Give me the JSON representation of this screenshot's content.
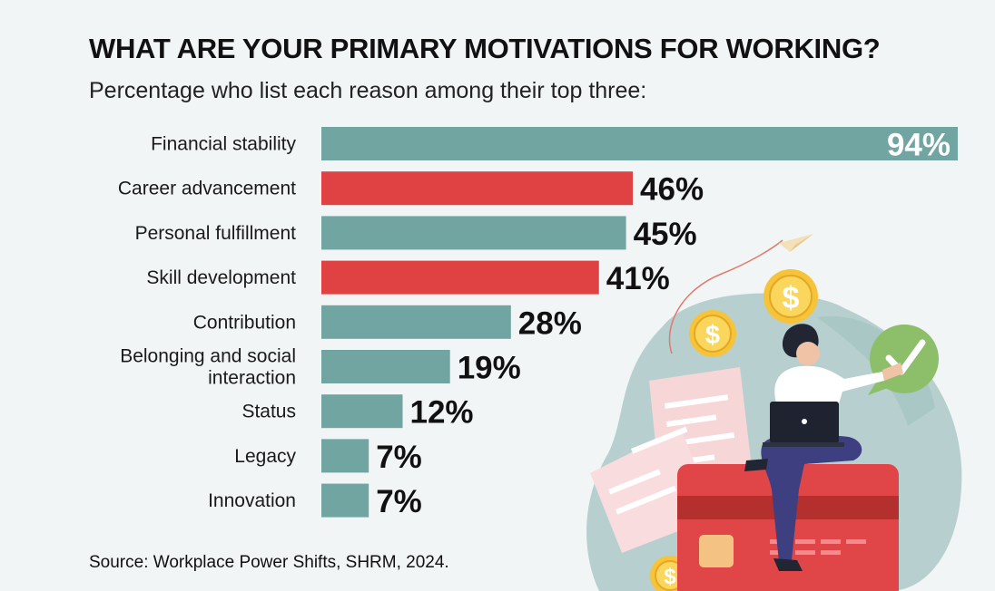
{
  "title": "WHAT ARE YOUR PRIMARY MOTIVATIONS FOR WORKING?",
  "subtitle": "Percentage who list each reason among their top three:",
  "source": "Source: Workplace Power Shifts, SHRM, 2024.",
  "colors": {
    "teal": "#71a5a2",
    "red": "#e04244",
    "background": "#f2f5f6"
  },
  "chart_data": {
    "type": "bar",
    "orientation": "horizontal",
    "categories": [
      [
        "Financial stability"
      ],
      [
        "Career advancement"
      ],
      [
        "Personal fulfillment"
      ],
      [
        "Skill development"
      ],
      [
        "Contribution"
      ],
      [
        "Belonging and social",
        "interaction"
      ],
      [
        "Status"
      ],
      [
        "Legacy"
      ],
      [
        "Innovation"
      ]
    ],
    "values": [
      94,
      46,
      45,
      41,
      28,
      19,
      12,
      7,
      7
    ],
    "value_labels": [
      "94%",
      "46%",
      "45%",
      "41%",
      "28%",
      "19%",
      "12%",
      "7%",
      "7%"
    ],
    "bar_colors": [
      "teal",
      "red",
      "teal",
      "red",
      "teal",
      "teal",
      "teal",
      "teal",
      "teal"
    ],
    "xlim": [
      0,
      94
    ],
    "grid": false
  },
  "illustration": {
    "icons": [
      "paper-plane-icon",
      "dollar-coin-icon",
      "checkmark-bubble-icon",
      "receipt-icon",
      "credit-card-icon",
      "laptop-icon",
      "person-icon"
    ]
  }
}
